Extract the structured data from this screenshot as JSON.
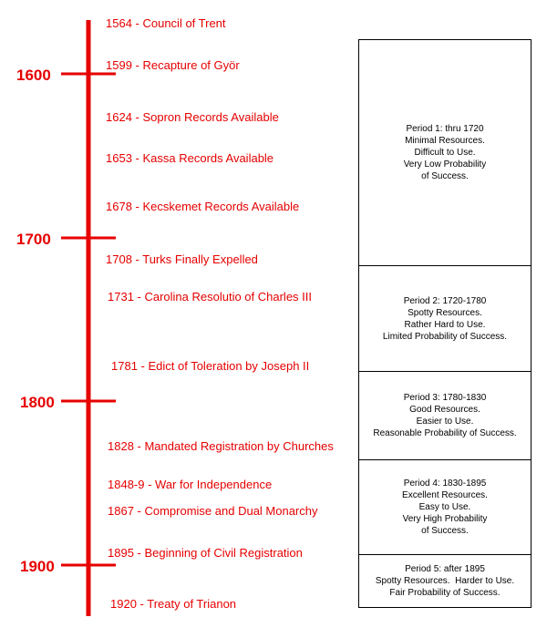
{
  "timeline": {
    "color": "#e60000",
    "centuries": [
      "1600",
      "1700",
      "1800",
      "1900"
    ],
    "events": [
      {
        "label": "1564  - Council of Trent"
      },
      {
        "label": "1599  - Recapture of Györ"
      },
      {
        "label": "1624  - Sopron Records Available"
      },
      {
        "label": "1653  - Kassa Records Available"
      },
      {
        "label": "1678  - Kecskemet Records Available"
      },
      {
        "label": "1708  - Turks Finally Expelled"
      },
      {
        "label": "1731  - Carolina Resolutio of Charles III"
      },
      {
        "label": "1781  - Edict of Toleration by Joseph II"
      },
      {
        "label": "1828  - Mandated Registration by Churches"
      },
      {
        "label": "1848-9  - War for Independence"
      },
      {
        "label": "1867  - Compromise and Dual Monarchy"
      },
      {
        "label": "1895  - Beginning of Civil Registration"
      },
      {
        "label": "1920  - Treaty of Trianon"
      }
    ]
  },
  "periods": [
    {
      "lines": [
        "Period 1: thru 1720",
        "Minimal Resources.",
        "Difficult to Use.",
        "Very Low Probability",
        "of Success."
      ]
    },
    {
      "lines": [
        "Period 2: 1720-1780",
        "Spotty Resources.",
        "Rather Hard to Use.",
        "Limited Probability of Success."
      ]
    },
    {
      "lines": [
        "Period 3: 1780-1830",
        "Good Resources.",
        "Easier to Use.",
        "Reasonable Probability of Success."
      ]
    },
    {
      "lines": [
        "Period 4: 1830-1895",
        "Excellent Resources.",
        "Easy to Use.",
        "Very High Probability",
        "of Success."
      ]
    },
    {
      "lines": [
        "Period 5: after 1895",
        "Spotty Resources.  Harder to Use.",
        "Fair Probability of Success."
      ]
    }
  ]
}
